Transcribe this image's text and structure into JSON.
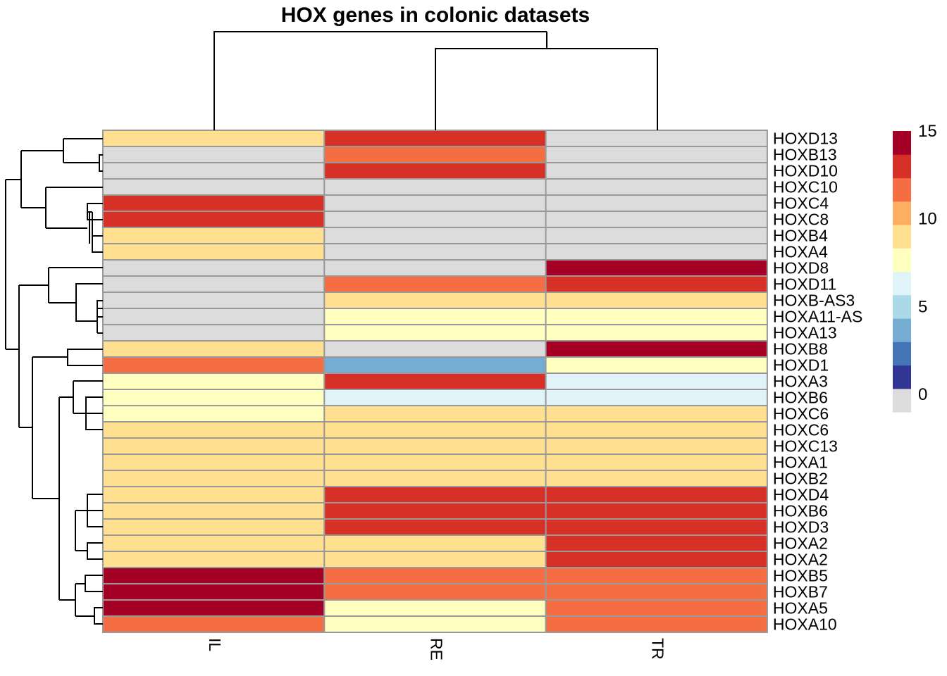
{
  "chart_data": {
    "type": "heatmap",
    "title": "HOX genes in colonic datasets",
    "columns": [
      "IL",
      "RE",
      "TR"
    ],
    "rows": [
      "HOXD13",
      "HOXB13",
      "HOXD10",
      "HOXC10",
      "HOXC4",
      "HOXC8",
      "HOXB4",
      "HOXA4",
      "HOXD8",
      "HOXD11",
      "HOXB-AS3",
      "HOXA11-AS",
      "HOXA13",
      "HOXB8",
      "HOXD1",
      "HOXA3",
      "HOXB6",
      "HOXC6",
      "HOXC6",
      "HOXC13",
      "HOXA1",
      "HOXB2",
      "HOXD4",
      "HOXB6",
      "HOXD3",
      "HOXA2",
      "HOXA2",
      "HOXB5",
      "HOXB7",
      "HOXA5",
      "HOXA10"
    ],
    "values": [
      [
        9.5,
        13.5,
        0
      ],
      [
        0,
        12,
        0
      ],
      [
        0,
        13.5,
        0
      ],
      [
        0,
        0,
        0
      ],
      [
        13.5,
        0,
        0
      ],
      [
        13.5,
        0,
        0
      ],
      [
        9.5,
        0,
        0
      ],
      [
        9.5,
        0,
        0
      ],
      [
        0,
        0,
        14.5
      ],
      [
        0,
        12,
        13.5
      ],
      [
        0,
        9.5,
        9.5
      ],
      [
        0,
        8,
        8
      ],
      [
        0,
        8,
        8
      ],
      [
        9.5,
        0,
        14.5
      ],
      [
        12,
        3.5,
        8
      ],
      [
        8,
        13.5,
        6.5
      ],
      [
        8,
        6.5,
        6.5
      ],
      [
        8,
        9.5,
        9.5
      ],
      [
        9.5,
        9.5,
        9.5
      ],
      [
        9.5,
        9.5,
        9.5
      ],
      [
        9.5,
        9.5,
        9.5
      ],
      [
        9.5,
        9.5,
        9.5
      ],
      [
        9.5,
        13.5,
        13.5
      ],
      [
        9.5,
        13.5,
        13.5
      ],
      [
        9.5,
        13.5,
        13.5
      ],
      [
        9.5,
        9.5,
        13.5
      ],
      [
        9.5,
        9.5,
        13.5
      ],
      [
        14.5,
        12,
        12
      ],
      [
        14.5,
        12,
        12
      ],
      [
        14.5,
        8,
        12
      ],
      [
        12,
        8,
        12
      ]
    ],
    "scale": {
      "min": 0,
      "max": 15,
      "ticks": [
        "0",
        "5",
        "10",
        "15"
      ],
      "colors": [
        "#DCDCDC",
        "#313695",
        "#4575B4",
        "#74ADD1",
        "#ABD9E9",
        "#E0F3F8",
        "#FFFFBF",
        "#FEE090",
        "#FDAE61",
        "#F46D43",
        "#D73027",
        "#A50026"
      ]
    },
    "row_dendrogram": true,
    "column_dendrogram": true,
    "cell_border": "#999999",
    "legend": "right"
  }
}
